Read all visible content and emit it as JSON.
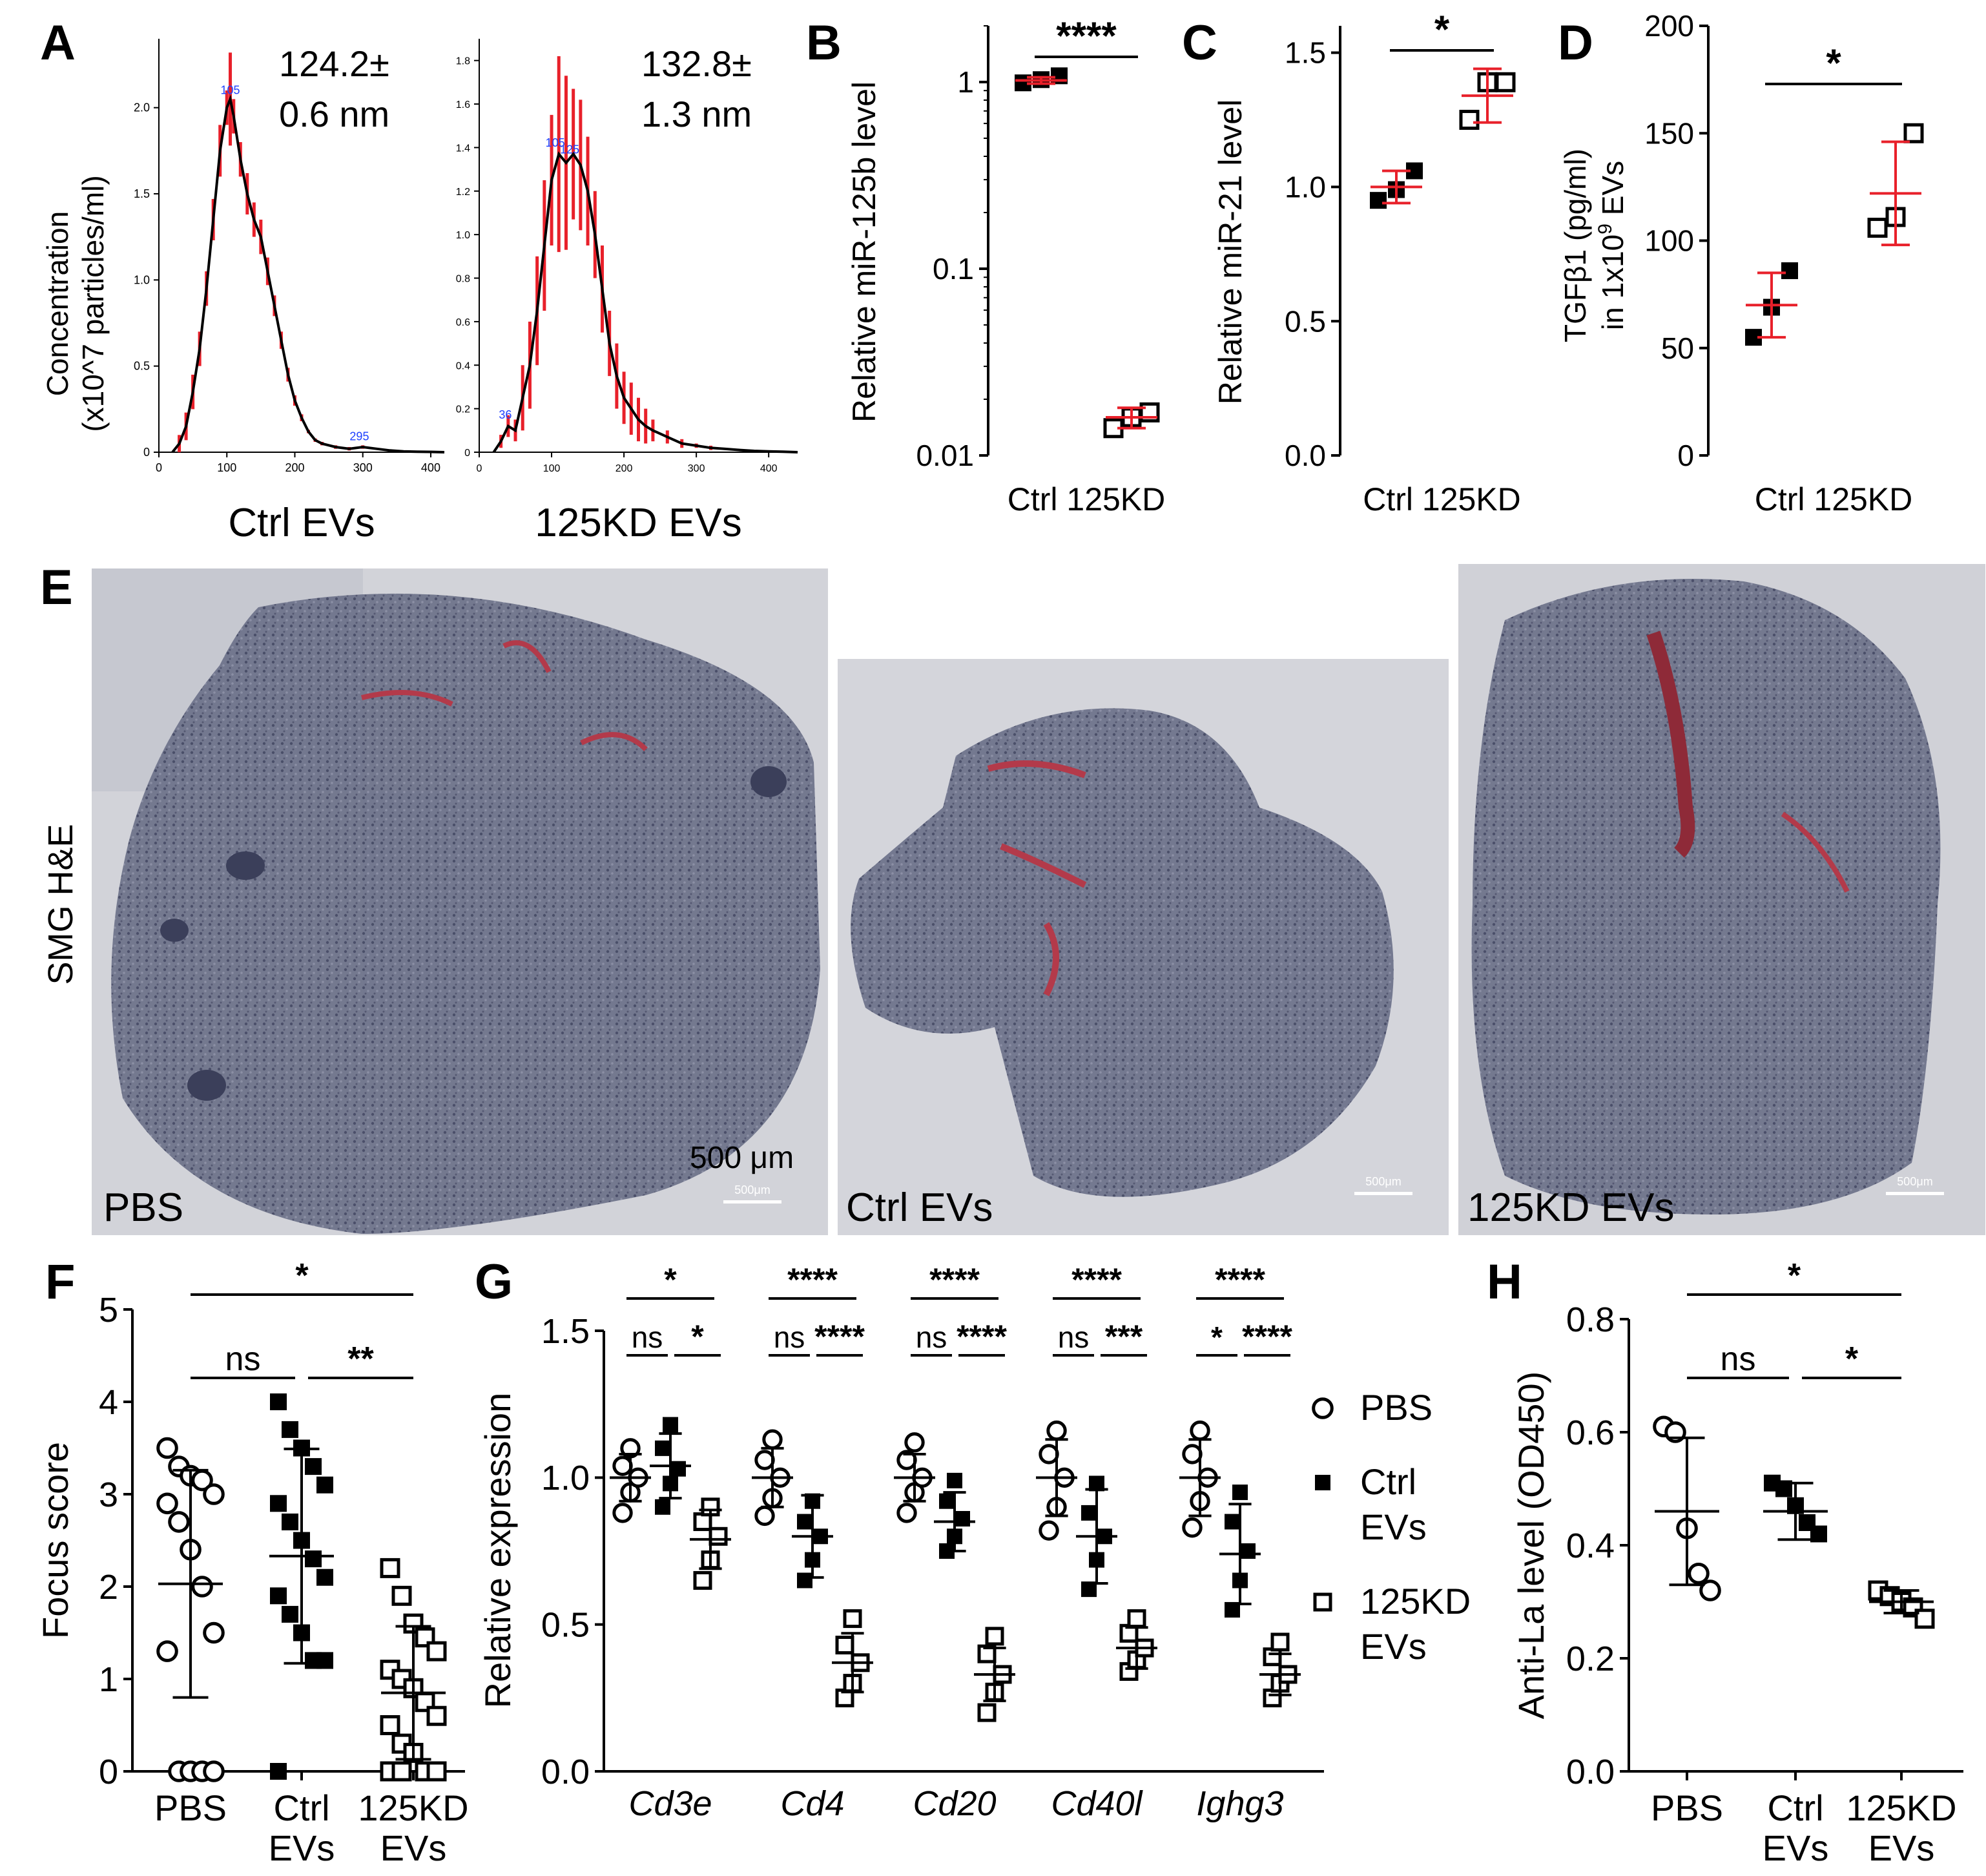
{
  "figure": {
    "panels": {
      "A": "A",
      "B": "B",
      "C": "C",
      "D": "D",
      "E": "E",
      "F": "F",
      "G": "G",
      "H": "H"
    }
  },
  "colors": {
    "red": "#e8202a",
    "black": "#000000",
    "blue": "#1e40ff",
    "tissue": "#5a5f78",
    "tissue_bg": "#cfd0d6"
  },
  "chart_data": [
    {
      "id": "A1",
      "type": "line",
      "title": "Ctrl EVs",
      "annotation": [
        "124.2±",
        "0.6 nm"
      ],
      "ylabel": [
        "Concentration",
        "(x10^7 particles/ml)"
      ],
      "xlim": [
        0,
        420
      ],
      "ylim": [
        0,
        2.4
      ],
      "xticks": [
        "0",
        "100",
        "200",
        "300",
        "400"
      ],
      "yticks": [
        "0",
        "0.5",
        "1.0",
        "1.5",
        "2.0"
      ],
      "peak_labels": [
        {
          "x": 105,
          "y": 2.05,
          "text": "105"
        },
        {
          "x": 295,
          "y": 0.04,
          "text": "295"
        }
      ],
      "x": [
        20,
        30,
        40,
        50,
        60,
        70,
        80,
        90,
        100,
        105,
        110,
        120,
        130,
        140,
        150,
        160,
        170,
        180,
        190,
        200,
        210,
        220,
        230,
        240,
        260,
        280,
        300,
        320,
        340,
        360,
        380,
        400,
        420
      ],
      "y": [
        0.0,
        0.05,
        0.15,
        0.35,
        0.6,
        0.95,
        1.35,
        1.75,
        2.0,
        2.05,
        1.95,
        1.7,
        1.5,
        1.35,
        1.25,
        1.05,
        0.85,
        0.65,
        0.45,
        0.3,
        0.2,
        0.12,
        0.07,
        0.05,
        0.03,
        0.02,
        0.03,
        0.02,
        0.01,
        0.005,
        0.003,
        0.002,
        0.0
      ],
      "err": [
        0.0,
        0.05,
        0.08,
        0.1,
        0.1,
        0.1,
        0.12,
        0.15,
        0.1,
        0.27,
        0.1,
        0.1,
        0.12,
        0.1,
        0.1,
        0.08,
        0.06,
        0.05,
        0.04,
        0.03,
        0.02,
        0.01,
        0.01,
        0.01,
        0.01,
        0.01,
        0.01,
        0.0,
        0.0,
        0.0,
        0.0,
        0.0,
        0.0
      ]
    },
    {
      "id": "A2",
      "type": "line",
      "title": "125KD EVs",
      "annotation": [
        "132.8±",
        "1.3 nm"
      ],
      "xlim": [
        0,
        440
      ],
      "ylim": [
        0,
        1.9
      ],
      "xticks": [
        "0",
        "100",
        "200",
        "300",
        "400"
      ],
      "yticks": [
        "0",
        "0.2",
        "0.4",
        "0.6",
        "0.8",
        "1.0",
        "1.2",
        "1.4",
        "1.6",
        "1.8"
      ],
      "peak_labels": [
        {
          "x": 36,
          "y": 0.13,
          "text": "36"
        },
        {
          "x": 105,
          "y": 1.38,
          "text": "105"
        },
        {
          "x": 125,
          "y": 1.35,
          "text": "125"
        }
      ],
      "x": [
        20,
        30,
        40,
        50,
        60,
        70,
        80,
        90,
        100,
        110,
        120,
        130,
        140,
        150,
        160,
        170,
        180,
        190,
        200,
        210,
        220,
        230,
        240,
        260,
        280,
        300,
        320,
        340,
        360,
        380,
        400,
        420,
        440
      ],
      "y": [
        0.0,
        0.05,
        0.12,
        0.1,
        0.25,
        0.4,
        0.65,
        0.95,
        1.25,
        1.37,
        1.33,
        1.37,
        1.32,
        1.2,
        1.0,
        0.75,
        0.5,
        0.35,
        0.25,
        0.2,
        0.15,
        0.12,
        0.1,
        0.07,
        0.04,
        0.03,
        0.02,
        0.015,
        0.01,
        0.006,
        0.004,
        0.002,
        0.0
      ],
      "err": [
        0.0,
        0.03,
        0.05,
        0.05,
        0.15,
        0.2,
        0.25,
        0.3,
        0.3,
        0.45,
        0.4,
        0.3,
        0.3,
        0.25,
        0.2,
        0.2,
        0.15,
        0.15,
        0.12,
        0.12,
        0.1,
        0.08,
        0.05,
        0.03,
        0.02,
        0.01,
        0.01,
        0.0,
        0.0,
        0.0,
        0.0,
        0.0,
        0.0
      ]
    },
    {
      "id": "B",
      "type": "scatter",
      "scale": "log",
      "ylabel": "Relative miR-125b level",
      "ylim": [
        0.01,
        2
      ],
      "yticks": [
        "0.01",
        "0.1",
        "1"
      ],
      "categories": [
        "Ctrl",
        "125KD"
      ],
      "groups": [
        {
          "name": "Ctrl",
          "marker": "filled-square",
          "points": [
            0.99,
            1.03,
            1.08
          ],
          "mean": 1.02,
          "sd": 0.04
        },
        {
          "name": "125KD",
          "marker": "open-square",
          "points": [
            0.014,
            0.016,
            0.017
          ],
          "mean": 0.016,
          "sd": 0.002
        }
      ],
      "significance": [
        {
          "from": 0,
          "to": 1,
          "label": "****"
        }
      ]
    },
    {
      "id": "C",
      "type": "scatter",
      "ylabel": "Relative miR-21 level",
      "ylim": [
        0,
        1.6
      ],
      "yticks": [
        "0.0",
        "0.5",
        "1.0",
        "1.5"
      ],
      "categories": [
        "Ctrl",
        "125KD"
      ],
      "groups": [
        {
          "name": "Ctrl",
          "marker": "filled-square",
          "points": [
            0.95,
            0.99,
            1.06
          ],
          "mean": 1.0,
          "sd": 0.06
        },
        {
          "name": "125KD",
          "marker": "open-square",
          "points": [
            1.25,
            1.39,
            1.39
          ],
          "mean": 1.34,
          "sd": 0.1
        }
      ],
      "significance": [
        {
          "from": 0,
          "to": 1,
          "label": "*"
        }
      ]
    },
    {
      "id": "D",
      "type": "scatter",
      "ylabel": [
        "TGFβ1 (pg/ml)",
        "in 1x10",
        "9",
        " EVs"
      ],
      "ylim": [
        0,
        200
      ],
      "yticks": [
        "0",
        "50",
        "100",
        "150",
        "200"
      ],
      "categories": [
        "Ctrl",
        "125KD"
      ],
      "groups": [
        {
          "name": "Ctrl",
          "marker": "filled-square",
          "points": [
            55,
            69,
            86
          ],
          "mean": 70,
          "sd": 15
        },
        {
          "name": "125KD",
          "marker": "open-square",
          "points": [
            106,
            111,
            150
          ],
          "mean": 122,
          "sd": 24
        }
      ],
      "significance": [
        {
          "from": 0,
          "to": 1,
          "label": "*"
        }
      ]
    },
    {
      "id": "F",
      "type": "scatter",
      "ylabel": "Focus score",
      "ylim": [
        0,
        5
      ],
      "yticks": [
        "0",
        "1",
        "2",
        "3",
        "4",
        "5"
      ],
      "categories": [
        [
          "PBS"
        ],
        [
          "Ctrl",
          "EVs"
        ],
        [
          "125KD",
          "EVs"
        ]
      ],
      "groups": [
        {
          "name": "PBS",
          "marker": "open-circle",
          "points": [
            3.5,
            3.3,
            3.2,
            3.15,
            3.0,
            2.9,
            2.7,
            2.4,
            2.0,
            1.5,
            1.3,
            0.0,
            0.0,
            0.0,
            0.0
          ],
          "mean": 2.03,
          "sd": 1.23
        },
        {
          "name": "Ctrl EVs",
          "marker": "filled-square",
          "points": [
            4.0,
            3.7,
            3.5,
            3.3,
            3.1,
            2.9,
            2.7,
            2.5,
            2.3,
            2.1,
            1.9,
            1.7,
            1.5,
            1.2,
            1.2,
            0.0
          ],
          "mean": 2.33,
          "sd": 1.16
        },
        {
          "name": "125KD EVs",
          "marker": "open-square",
          "points": [
            2.2,
            1.9,
            1.6,
            1.45,
            1.3,
            1.1,
            1.0,
            0.9,
            0.75,
            0.6,
            0.5,
            0.3,
            0.2,
            0.0,
            0.0,
            0.0,
            0.0
          ],
          "mean": 0.85,
          "sd": 0.72
        }
      ],
      "significance": [
        {
          "from": 0,
          "to": 2,
          "label": "*",
          "level": 2
        },
        {
          "from": 0,
          "to": 1,
          "label": "ns",
          "level": 1
        },
        {
          "from": 1,
          "to": 2,
          "label": "**",
          "level": 1
        }
      ]
    },
    {
      "id": "G",
      "type": "scatter",
      "ylabel": "Relative expression",
      "ylim": [
        0,
        1.5
      ],
      "yticks": [
        "0.0",
        "0.5",
        "1.0",
        "1.5"
      ],
      "genes": [
        "Cd3e",
        "Cd4",
        "Cd20",
        "Cd40l",
        "Ighg3"
      ],
      "legend": [
        "PBS",
        [
          "Ctrl",
          "EVs"
        ],
        [
          "125KD",
          "EVs"
        ]
      ],
      "groups": [
        {
          "gene": "Cd3e",
          "sets": [
            {
              "marker": "open-circle",
              "points": [
                0.88,
                0.95,
                1.0,
                1.04,
                1.1
              ],
              "mean": 1.0,
              "sd": 0.08
            },
            {
              "marker": "filled-square",
              "points": [
                0.9,
                0.98,
                1.03,
                1.1,
                1.18
              ],
              "mean": 1.04,
              "sd": 0.11
            },
            {
              "marker": "open-square",
              "points": [
                0.65,
                0.72,
                0.8,
                0.85,
                0.9
              ],
              "mean": 0.79,
              "sd": 0.1
            }
          ],
          "sig": [
            "*",
            "ns",
            "*"
          ]
        },
        {
          "gene": "Cd4",
          "sets": [
            {
              "marker": "open-circle",
              "points": [
                0.87,
                0.93,
                1.0,
                1.06,
                1.13
              ],
              "mean": 1.0,
              "sd": 0.1
            },
            {
              "marker": "filled-square",
              "points": [
                0.65,
                0.72,
                0.8,
                0.85,
                0.92
              ],
              "mean": 0.8,
              "sd": 0.14
            },
            {
              "marker": "open-square",
              "points": [
                0.25,
                0.3,
                0.37,
                0.43,
                0.52
              ],
              "mean": 0.37,
              "sd": 0.1
            }
          ],
          "sig": [
            "****",
            "ns",
            "****"
          ]
        },
        {
          "gene": "Cd20",
          "sets": [
            {
              "marker": "open-circle",
              "points": [
                0.88,
                0.95,
                1.0,
                1.06,
                1.12
              ],
              "mean": 1.0,
              "sd": 0.08
            },
            {
              "marker": "filled-square",
              "points": [
                0.75,
                0.8,
                0.86,
                0.92,
                0.99
              ],
              "mean": 0.85,
              "sd": 0.1
            },
            {
              "marker": "open-square",
              "points": [
                0.2,
                0.27,
                0.33,
                0.4,
                0.46
              ],
              "mean": 0.33,
              "sd": 0.09
            }
          ],
          "sig": [
            "****",
            "ns",
            "****"
          ]
        },
        {
          "gene": "Cd40l",
          "sets": [
            {
              "marker": "open-circle",
              "points": [
                0.82,
                0.9,
                1.0,
                1.08,
                1.16
              ],
              "mean": 1.0,
              "sd": 0.13
            },
            {
              "marker": "filled-square",
              "points": [
                0.62,
                0.72,
                0.8,
                0.88,
                0.98
              ],
              "mean": 0.8,
              "sd": 0.16
            },
            {
              "marker": "open-square",
              "points": [
                0.34,
                0.38,
                0.42,
                0.47,
                0.52
              ],
              "mean": 0.42,
              "sd": 0.07
            }
          ],
          "sig": [
            "****",
            "ns",
            "***"
          ]
        },
        {
          "gene": "Ighg3",
          "sets": [
            {
              "marker": "open-circle",
              "points": [
                0.83,
                0.92,
                1.0,
                1.08,
                1.16
              ],
              "mean": 1.0,
              "sd": 0.13
            },
            {
              "marker": "filled-square",
              "points": [
                0.55,
                0.65,
                0.75,
                0.85,
                0.95
              ],
              "mean": 0.74,
              "sd": 0.17
            },
            {
              "marker": "open-square",
              "points": [
                0.25,
                0.3,
                0.33,
                0.39,
                0.44
              ],
              "mean": 0.33,
              "sd": 0.07
            }
          ],
          "sig": [
            "****",
            "*",
            "****"
          ]
        }
      ]
    },
    {
      "id": "H",
      "type": "scatter",
      "ylabel": "Anti-La level (OD450)",
      "ylim": [
        0,
        0.8
      ],
      "yticks": [
        "0.0",
        "0.2",
        "0.4",
        "0.6",
        "0.8"
      ],
      "categories": [
        [
          "PBS"
        ],
        [
          "Ctrl",
          "EVs"
        ],
        [
          "125KD",
          "EVs"
        ]
      ],
      "groups": [
        {
          "name": "PBS",
          "marker": "open-circle",
          "points": [
            0.61,
            0.6,
            0.43,
            0.35,
            0.32
          ],
          "mean": 0.46,
          "sd": 0.13
        },
        {
          "name": "Ctrl EVs",
          "marker": "filled-square",
          "points": [
            0.51,
            0.5,
            0.47,
            0.44,
            0.42
          ],
          "mean": 0.46,
          "sd": 0.05
        },
        {
          "name": "125KD EVs",
          "marker": "open-square",
          "points": [
            0.32,
            0.31,
            0.3,
            0.29,
            0.27
          ],
          "mean": 0.3,
          "sd": 0.02
        }
      ],
      "significance": [
        {
          "from": 0,
          "to": 2,
          "label": "*",
          "level": 2
        },
        {
          "from": 0,
          "to": 1,
          "label": "ns",
          "level": 1
        },
        {
          "from": 1,
          "to": 2,
          "label": "*",
          "level": 1
        }
      ]
    }
  ],
  "histology": {
    "row_label": "SMG H&E",
    "scale_label": "500 μm",
    "images": [
      {
        "label": "PBS",
        "scalebar": "500μm"
      },
      {
        "label": "Ctrl EVs",
        "scalebar": "500μm"
      },
      {
        "label": "125KD EVs",
        "scalebar": "500μm"
      }
    ]
  }
}
